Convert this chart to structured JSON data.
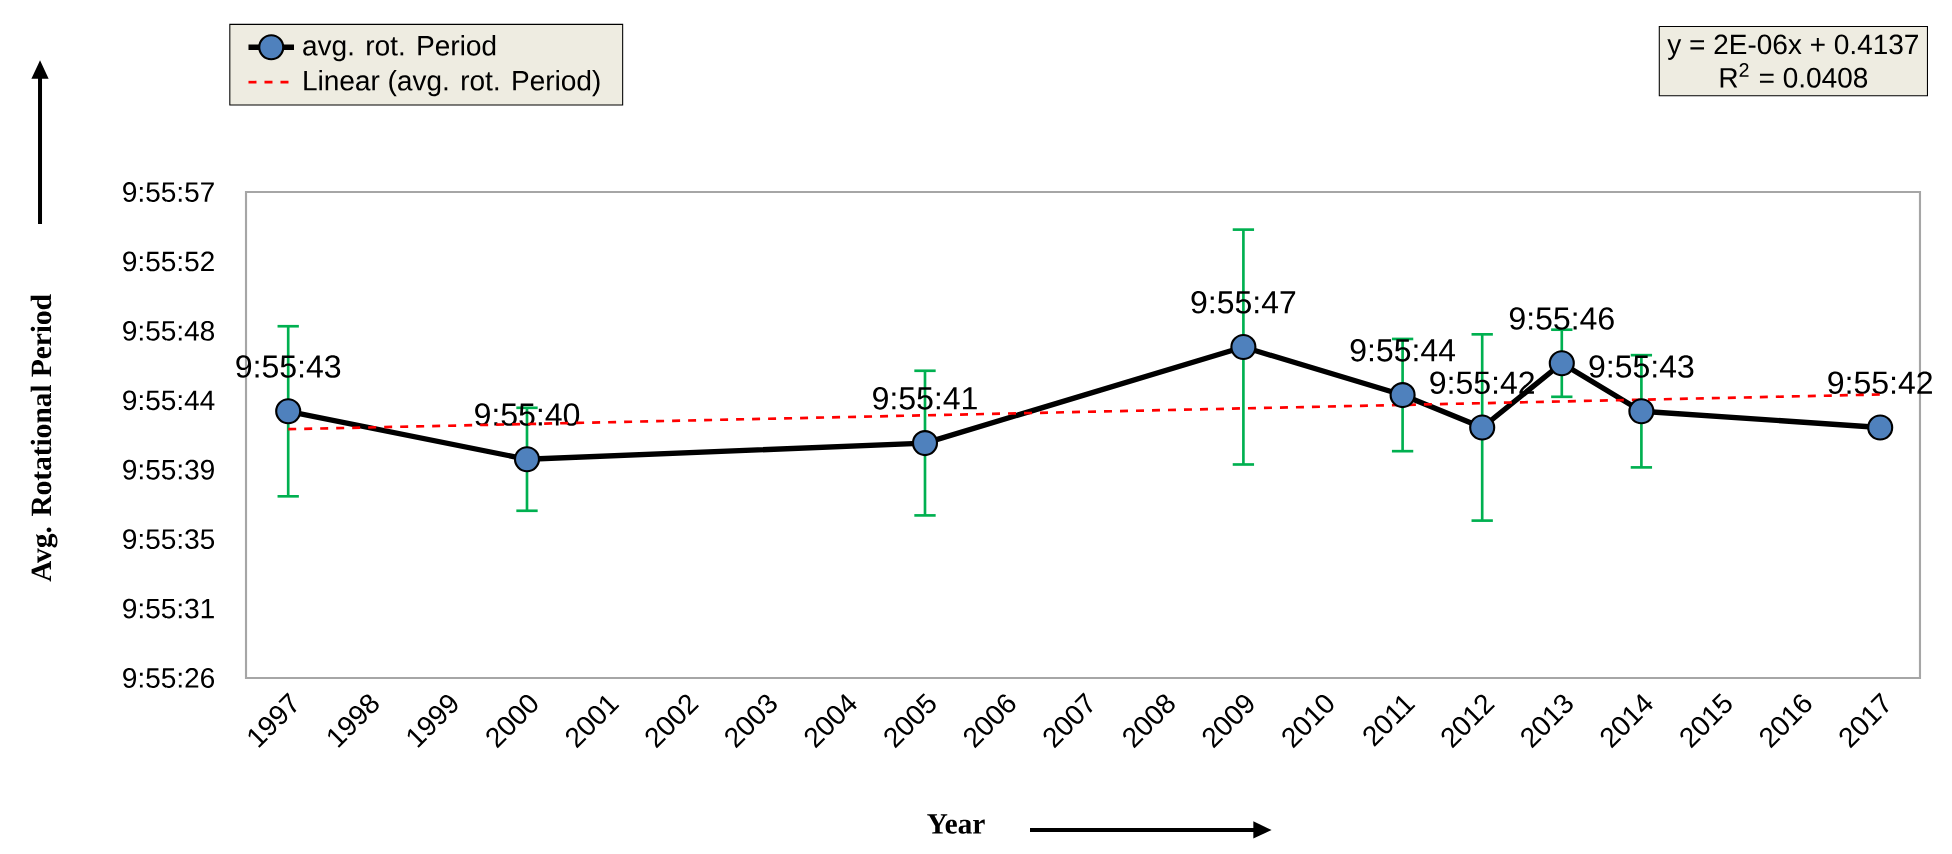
{
  "chart_data": {
    "type": "line",
    "xlabel": "Year",
    "ylabel": "Avg. Rotational Period",
    "categories": [
      "1997",
      "1998",
      "1999",
      "2000",
      "2001",
      "2002",
      "2003",
      "2004",
      "2005",
      "2006",
      "2007",
      "2008",
      "2009",
      "2010",
      "2011",
      "2012",
      "2013",
      "2014",
      "2015",
      "2016",
      "2017"
    ],
    "series": [
      {
        "name": "avg. rot. Period",
        "color": "#4f81bd",
        "marker": "circle",
        "line_style": "solid",
        "values": [
          9.92861,
          null,
          null,
          9.92778,
          null,
          null,
          null,
          null,
          9.92806,
          null,
          null,
          null,
          9.92972,
          null,
          9.92889,
          9.92833,
          9.92944,
          9.92861,
          null,
          null,
          9.92833
        ],
        "errors": [
          0.00147,
          null,
          null,
          0.00089,
          null,
          null,
          null,
          null,
          0.00125,
          null,
          null,
          null,
          0.00203,
          null,
          0.00097,
          0.00161,
          0.00058,
          0.00097,
          null,
          null,
          null
        ],
        "value_labels": [
          "9:55:43",
          null,
          null,
          "9:55:40",
          null,
          null,
          null,
          null,
          "9:55:41",
          null,
          null,
          null,
          "9:55:47",
          null,
          "9:55:44",
          "9:55:42",
          "9:55:46",
          "9:55:43",
          null,
          null,
          "9:55:42"
        ]
      },
      {
        "name": "Linear (avg. rot. Period)",
        "type": "line",
        "color": "#ff0000",
        "marker": "none",
        "line_style": "dashed",
        "values": [
          9.9283,
          null,
          null,
          null,
          null,
          null,
          null,
          null,
          null,
          null,
          null,
          null,
          null,
          null,
          null,
          null,
          null,
          null,
          null,
          null,
          9.9289
        ]
      }
    ],
    "ylim": [
      9.924,
      9.9324
    ],
    "yticks": [
      {
        "value": 9.924,
        "label": "9:55:26"
      },
      {
        "value": 9.9252,
        "label": "9:55:31"
      },
      {
        "value": 9.9264,
        "label": "9:55:35"
      },
      {
        "value": 9.9276,
        "label": "9:55:39"
      },
      {
        "value": 9.9288,
        "label": "9:55:44"
      },
      {
        "value": 9.93,
        "label": "9:55:48"
      },
      {
        "value": 9.9312,
        "label": "9:55:52"
      },
      {
        "value": 9.9324,
        "label": "9:55:57"
      }
    ],
    "legend": "top left",
    "annotations": [
      "y = 2E-06x + 0.4137",
      "R$^{2}$ = 0.0408"
    ]
  }
}
